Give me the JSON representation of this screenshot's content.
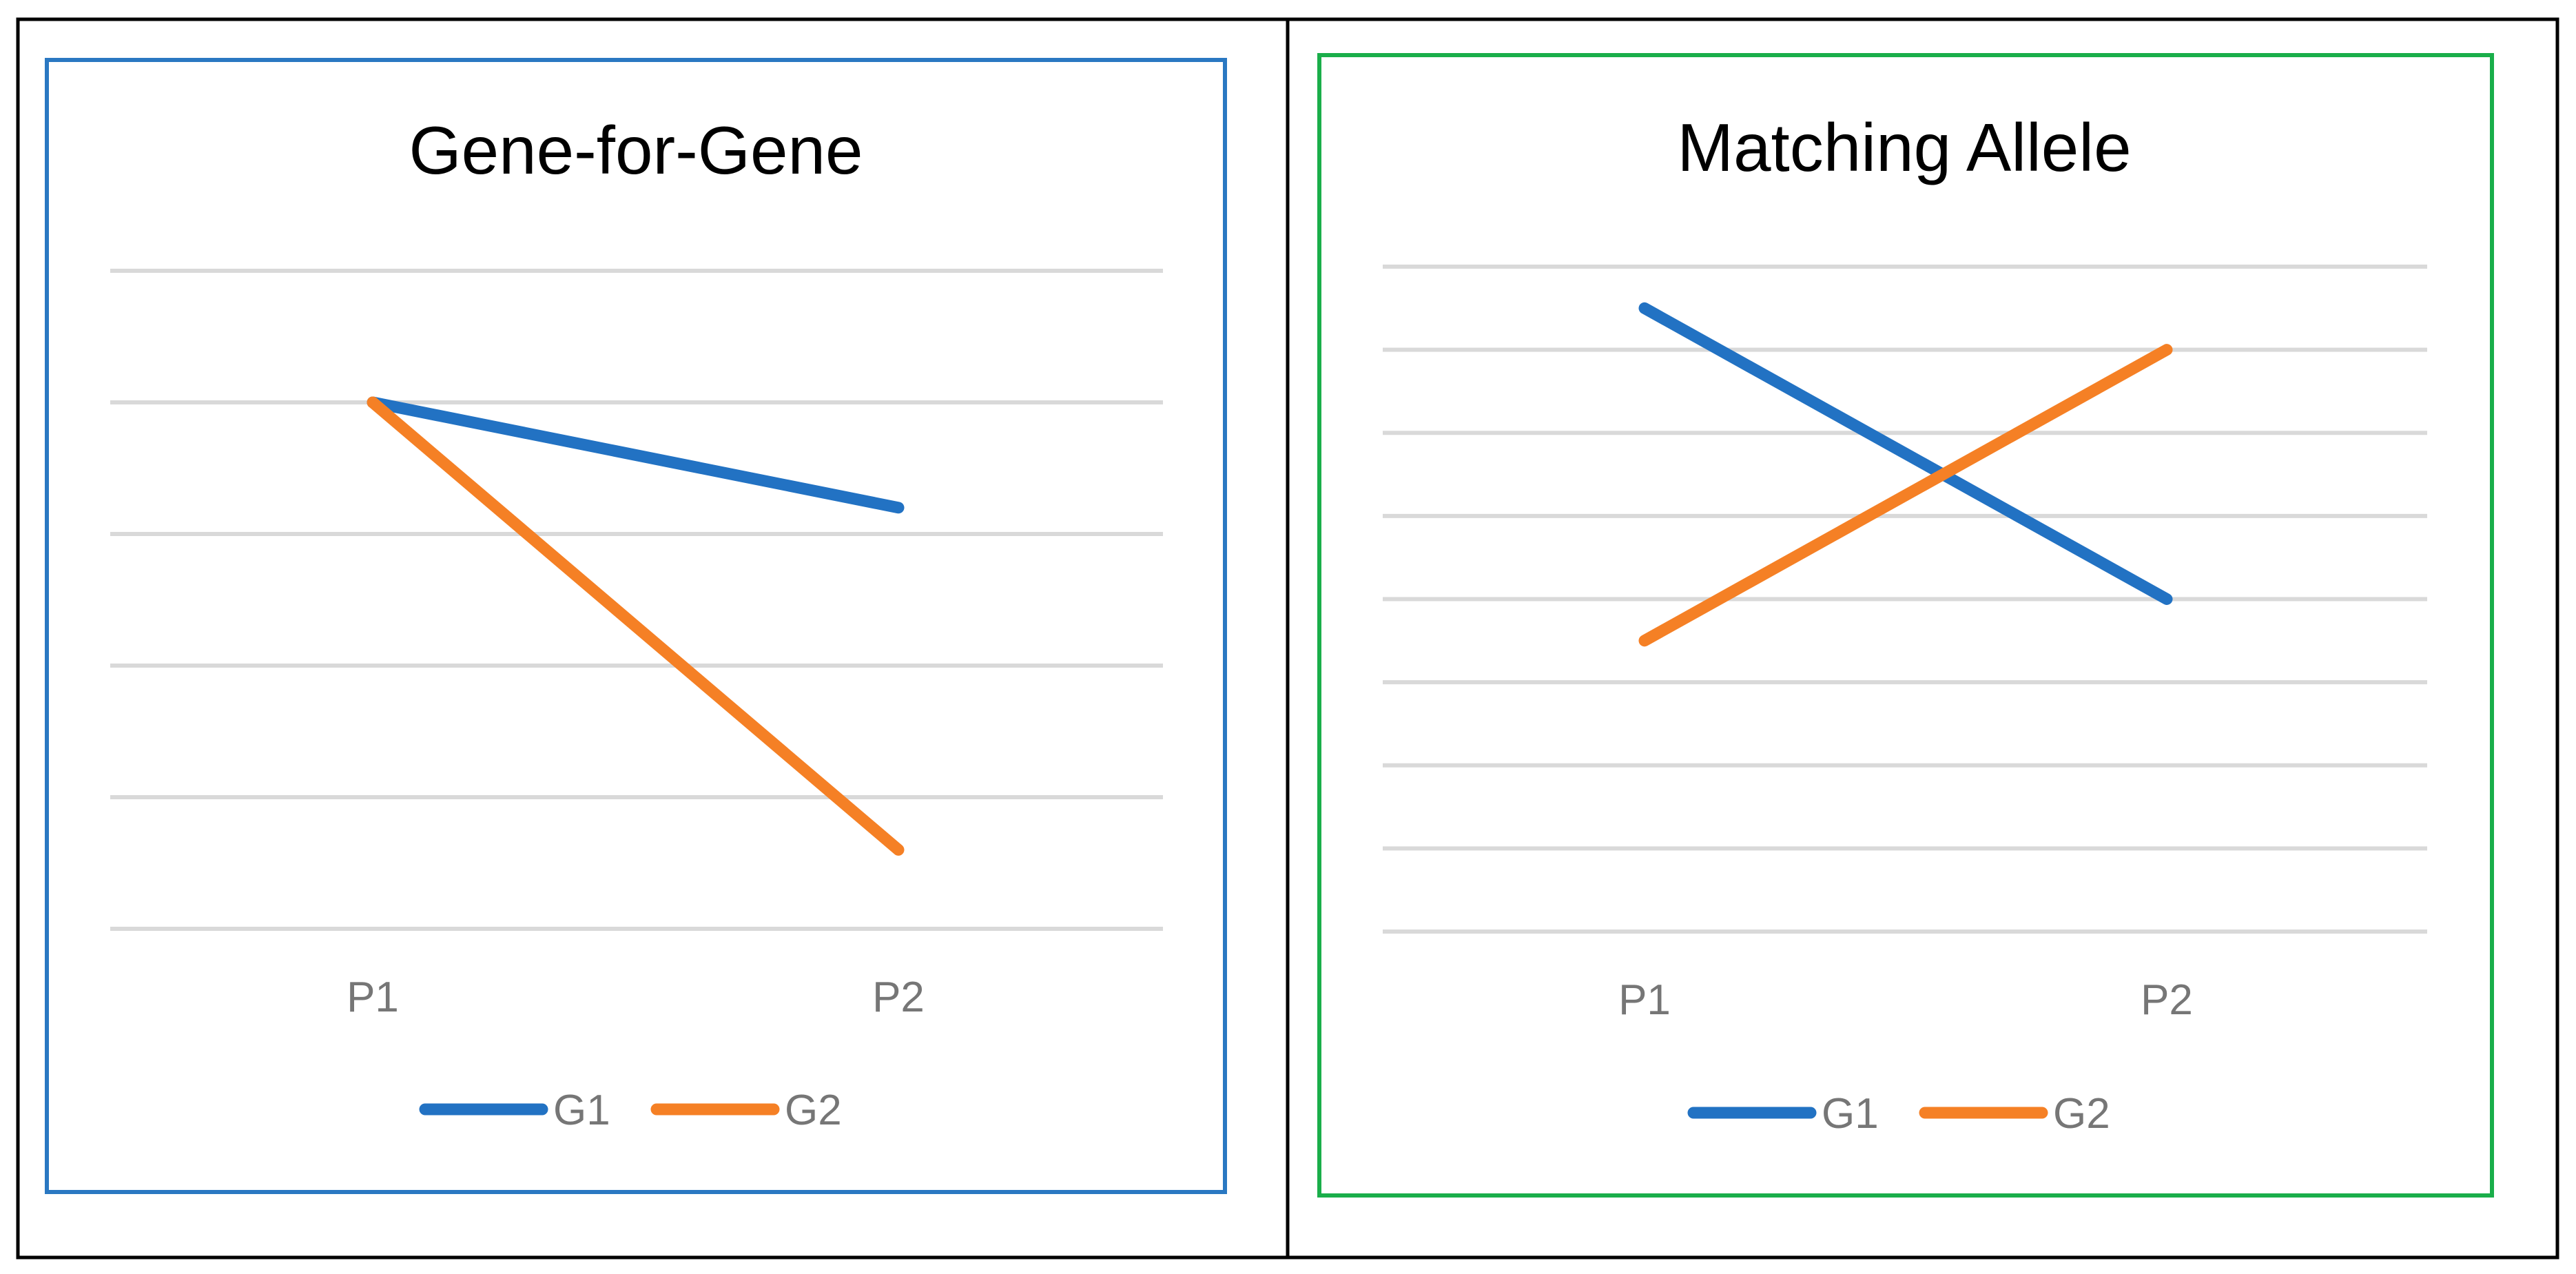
{
  "colors": {
    "outer_border": "#000000",
    "divider": "#000000",
    "panel_left_border": "#2a78c2",
    "panel_right_border": "#1aae4a",
    "grid": "#d9d9d9",
    "tick_text": "#767676",
    "title_text": "#000000",
    "series_g1": "#2272c3",
    "series_g2": "#f58025"
  },
  "chart_data": [
    {
      "type": "line",
      "title": "Gene-for-Gene",
      "categories": [
        "P1",
        "P2"
      ],
      "ylim": [
        0,
        5
      ],
      "grid": true,
      "legend": "bottom-center",
      "series": [
        {
          "name": "G1",
          "values": [
            4,
            3.2
          ]
        },
        {
          "name": "G2",
          "values": [
            4,
            0.6
          ]
        }
      ]
    },
    {
      "type": "line",
      "title": "Matching Allele",
      "categories": [
        "P1",
        "P2"
      ],
      "ylim": [
        0,
        8
      ],
      "grid": true,
      "legend": "bottom-center",
      "series": [
        {
          "name": "G1",
          "values": [
            7.5,
            4
          ]
        },
        {
          "name": "G2",
          "values": [
            3.5,
            7
          ]
        }
      ]
    }
  ]
}
